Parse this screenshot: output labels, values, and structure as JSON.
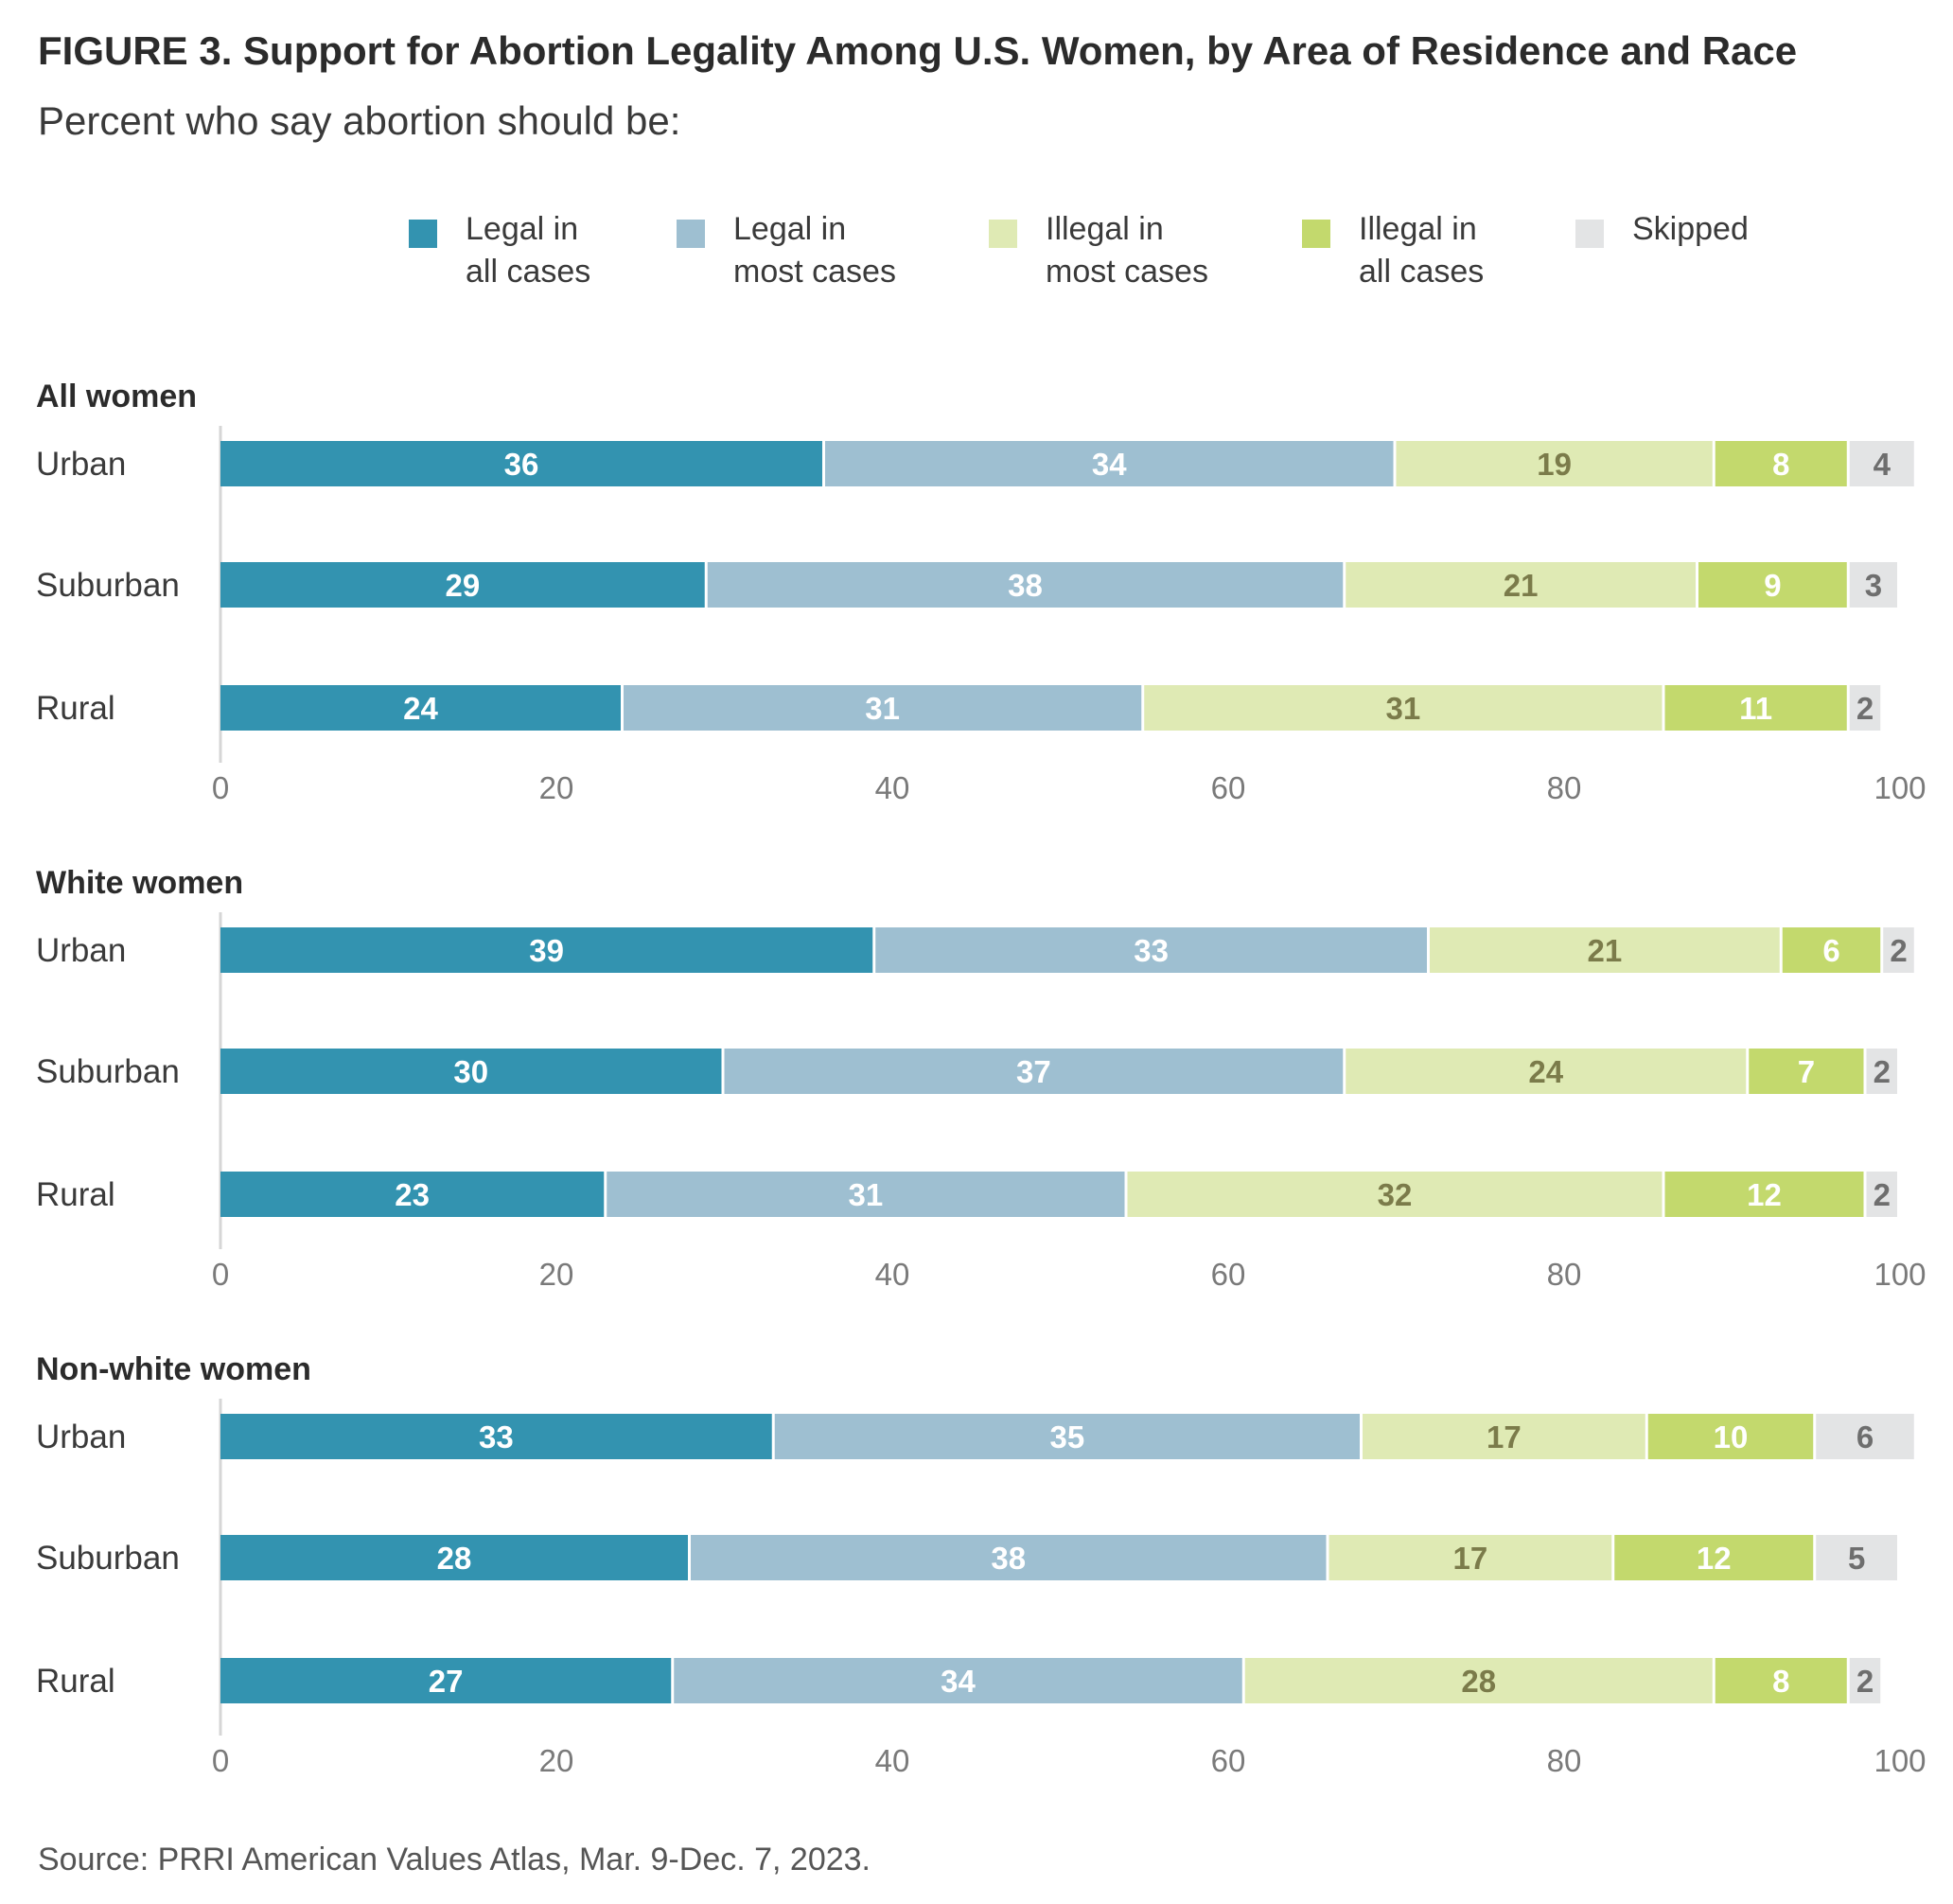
{
  "title": "FIGURE 3.  Support for Abortion Legality Among U.S. Women, by Area of Residence and Race",
  "subtitle": "Percent who say abortion should be:",
  "source": "Source: PRRI American Values Atlas, Mar. 9-Dec. 7, 2023.",
  "legend": [
    {
      "line1": "Legal in",
      "line2": "all cases",
      "color": "#3393b0"
    },
    {
      "line1": "Legal in",
      "line2": "most cases",
      "color": "#9ebfd1"
    },
    {
      "line1": "Illegal in",
      "line2": "most cases",
      "color": "#dfeab4"
    },
    {
      "line1": "Illegal in",
      "line2": "all cases",
      "color": "#c3d96d"
    },
    {
      "line1": "Skipped",
      "line2": "",
      "color": "#e3e4e5"
    }
  ],
  "chart_data": {
    "type": "bar",
    "orientation": "horizontal-stacked",
    "xlim": [
      0,
      100
    ],
    "ticks": [
      0,
      20,
      40,
      60,
      80,
      100
    ],
    "series": [
      "Legal in all cases",
      "Legal in most cases",
      "Illegal in most cases",
      "Illegal in all cases",
      "Skipped"
    ],
    "label_colors": [
      "#ffffff",
      "#ffffff",
      "#7b7b4a",
      "#ffffff",
      "#6e6e6e"
    ],
    "panels": [
      {
        "title": "All women",
        "rows": [
          {
            "label": "Urban",
            "values": [
              36,
              34,
              19,
              8,
              4
            ]
          },
          {
            "label": "Suburban",
            "values": [
              29,
              38,
              21,
              9,
              3
            ]
          },
          {
            "label": "Rural",
            "values": [
              24,
              31,
              31,
              11,
              2
            ]
          }
        ]
      },
      {
        "title": "White women",
        "rows": [
          {
            "label": "Urban",
            "values": [
              39,
              33,
              21,
              6,
              2
            ]
          },
          {
            "label": "Suburban",
            "values": [
              30,
              37,
              24,
              7,
              2
            ]
          },
          {
            "label": "Rural",
            "values": [
              23,
              31,
              32,
              12,
              2
            ]
          }
        ]
      },
      {
        "title": "Non-white women",
        "rows": [
          {
            "label": "Urban",
            "values": [
              33,
              35,
              17,
              10,
              6
            ]
          },
          {
            "label": "Suburban",
            "values": [
              28,
              38,
              17,
              12,
              5
            ]
          },
          {
            "label": "Rural",
            "values": [
              27,
              34,
              28,
              8,
              2
            ]
          }
        ]
      }
    ]
  }
}
